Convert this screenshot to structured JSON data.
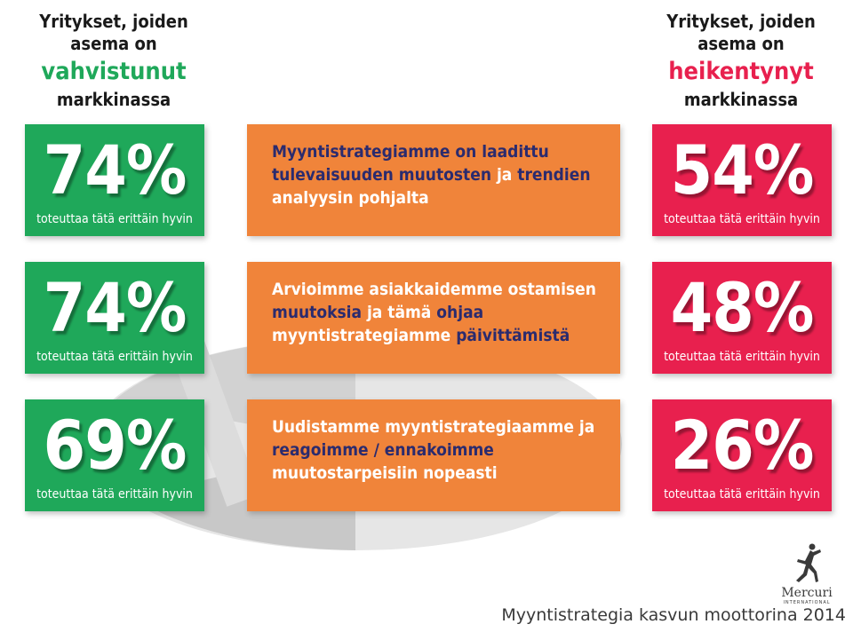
{
  "left_header": {
    "line1": "Yritykset, joiden",
    "line2": "asema on",
    "highlight": "vahvistunut",
    "line4": "markkinassa",
    "color": "#1fa85a"
  },
  "right_header": {
    "line1": "Yritykset, joiden",
    "line2": "asema on",
    "highlight": "heikentynyt",
    "line4": "markkinassa",
    "color": "#e8204e"
  },
  "stat_subtitle": "toteuttaa tätä erittäin hyvin",
  "left_stats": [
    "74%",
    "74%",
    "69%"
  ],
  "right_stats": [
    "54%",
    "48%",
    "26%"
  ],
  "statements": [
    {
      "segments": [
        [
          "Myyntistrategiamme on laadittu ",
          "d"
        ],
        [
          "tulevaisuuden muutosten ",
          "d"
        ],
        [
          "ja ",
          "w"
        ],
        [
          "trendien ",
          "d"
        ],
        [
          "analyysin pohjalta",
          "w"
        ]
      ]
    },
    {
      "segments": [
        [
          "Arvioimme asiakkaidemme ",
          "w"
        ],
        [
          "ostamisen ",
          "w"
        ],
        [
          "muutoksia ",
          "d"
        ],
        [
          "ja tämä ",
          "w"
        ],
        [
          "ohjaa ",
          "d"
        ],
        [
          "myyntistrategiamme ",
          "w"
        ],
        [
          "päivittämistä",
          "d"
        ]
      ]
    },
    {
      "segments": [
        [
          "Uudistamme myyntistrategiaamme ",
          "w"
        ],
        [
          "ja ",
          "w"
        ],
        [
          "reagoimme / ennakoimme ",
          "d"
        ],
        [
          "muutostarpeisiin nopeasti",
          "w"
        ]
      ]
    }
  ],
  "logo": {
    "name": "Mercuri",
    "tagline": "INTERNATIONAL"
  },
  "footer": "Myyntistrategia kasvun moottorina 2014",
  "colors": {
    "green": "#1fa85a",
    "red": "#e8204e",
    "orange": "#f0843a",
    "navy": "#2b2b6e"
  }
}
